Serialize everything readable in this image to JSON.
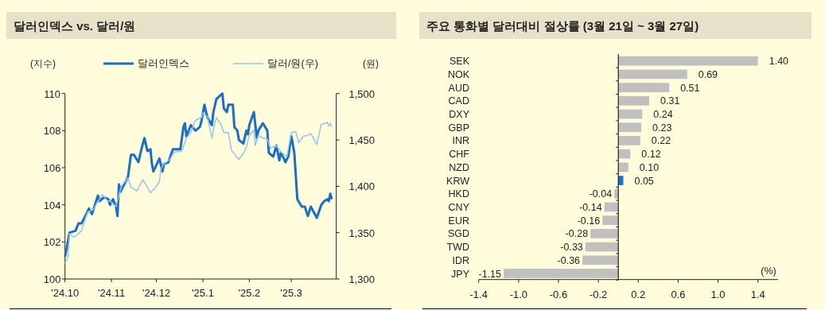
{
  "chart_data": [
    {
      "type": "line",
      "title": "달러인덱스 vs. 달러/원",
      "ylabel": "(지수)",
      "y2label": "(원)",
      "legend": "top",
      "xlim": [
        "2024-10-01",
        "2025-03-31"
      ],
      "xticks": [
        {
          "value": "2024-10-01",
          "label": "'24.10"
        },
        {
          "value": "2024-11-01",
          "label": "'24.11"
        },
        {
          "value": "2024-12-01",
          "label": "'24.12"
        },
        {
          "value": "2025-01-01",
          "label": "'25.1"
        },
        {
          "value": "2025-02-01",
          "label": "'25.2"
        },
        {
          "value": "2025-03-01",
          "label": "'25.3"
        }
      ],
      "ylim": [
        100,
        110
      ],
      "yticks": [
        100,
        102,
        104,
        106,
        108,
        110
      ],
      "y2lim": [
        1300,
        1500
      ],
      "y2ticks": [
        {
          "value": 1300,
          "label": "1,300"
        },
        {
          "value": 1350,
          "label": "1,350"
        },
        {
          "value": 1400,
          "label": "1,400"
        },
        {
          "value": 1450,
          "label": "1,450"
        },
        {
          "value": 1500,
          "label": "1,500"
        }
      ],
      "series": [
        {
          "name": "달러인덱스",
          "color": "#1a6fc4",
          "x": [
            "2024-10-01",
            "2024-10-04",
            "2024-10-08",
            "2024-10-10",
            "2024-10-12",
            "2024-10-14",
            "2024-10-17",
            "2024-10-19",
            "2024-10-23",
            "2024-10-24",
            "2024-10-27",
            "2024-10-30",
            "2024-10-31",
            "2024-11-02",
            "2024-11-04",
            "2024-11-05",
            "2024-11-06",
            "2024-11-07",
            "2024-11-12",
            "2024-11-14",
            "2024-11-16",
            "2024-11-19",
            "2024-11-21",
            "2024-11-23",
            "2024-11-25",
            "2024-11-27",
            "2024-11-28",
            "2024-11-29",
            "2024-12-03",
            "2024-12-05",
            "2024-12-06",
            "2024-12-09",
            "2024-12-12",
            "2024-12-14",
            "2024-12-17",
            "2024-12-19",
            "2024-12-20",
            "2024-12-21",
            "2024-12-24",
            "2024-12-27",
            "2024-12-30",
            "2024-12-31",
            "2025-01-02",
            "2025-01-04",
            "2025-01-07",
            "2025-01-08",
            "2025-01-10",
            "2025-01-14",
            "2025-01-15",
            "2025-01-17",
            "2025-01-18",
            "2025-01-21",
            "2025-01-22",
            "2025-01-24",
            "2025-01-25",
            "2025-01-28",
            "2025-01-30",
            "2025-01-31",
            "2025-02-01",
            "2025-02-04",
            "2025-02-06",
            "2025-02-07",
            "2025-02-10",
            "2025-02-13",
            "2025-02-14",
            "2025-02-17",
            "2025-02-19",
            "2025-02-21",
            "2025-02-22",
            "2025-02-24",
            "2025-02-25",
            "2025-02-27",
            "2025-03-01",
            "2025-03-03",
            "2025-03-05",
            "2025-03-08",
            "2025-03-10",
            "2025-03-12",
            "2025-03-14",
            "2025-03-18",
            "2025-03-21",
            "2025-03-23",
            "2025-03-25",
            "2025-03-26",
            "2025-03-27",
            "2025-03-28"
          ],
          "values": [
            101.2,
            102.5,
            102.6,
            103.0,
            103.0,
            103.3,
            103.8,
            103.5,
            104.5,
            104.2,
            104.4,
            104.3,
            104.0,
            104.3,
            103.9,
            103.4,
            105.1,
            104.7,
            105.5,
            106.7,
            106.7,
            106.3,
            107.0,
            107.6,
            106.9,
            107.0,
            106.2,
            105.8,
            106.5,
            105.8,
            106.2,
            106.3,
            107.0,
            107.0,
            107.0,
            108.2,
            108.4,
            107.7,
            108.3,
            108.0,
            108.2,
            108.5,
            109.4,
            108.7,
            108.3,
            109.0,
            109.7,
            110.0,
            109.2,
            109.0,
            109.4,
            109.4,
            108.2,
            108.0,
            107.5,
            107.3,
            108.0,
            107.8,
            108.3,
            109.0,
            107.6,
            108.0,
            108.4,
            108.0,
            106.8,
            106.6,
            107.2,
            106.4,
            106.8,
            106.5,
            106.3,
            106.6,
            107.7,
            106.8,
            104.3,
            103.9,
            103.9,
            103.4,
            103.9,
            103.3,
            104.0,
            104.2,
            104.3,
            104.2,
            104.6,
            104.3
          ]
        },
        {
          "name": "달러/원(우)",
          "color": "#92c4f0",
          "axis": "y2",
          "x": [
            "2024-10-01",
            "2024-10-03",
            "2024-10-04",
            "2024-10-07",
            "2024-10-10",
            "2024-10-12",
            "2024-10-16",
            "2024-10-20",
            "2024-10-22",
            "2024-10-26",
            "2024-10-29",
            "2024-10-31",
            "2024-11-04",
            "2024-11-06",
            "2024-11-08",
            "2024-11-12",
            "2024-11-14",
            "2024-11-18",
            "2024-11-20",
            "2024-11-22",
            "2024-11-25",
            "2024-11-27",
            "2024-11-30",
            "2024-12-03",
            "2024-12-04",
            "2024-12-06",
            "2024-12-10",
            "2024-12-13",
            "2024-12-18",
            "2024-12-21",
            "2024-12-24",
            "2024-12-27",
            "2024-12-31",
            "2025-01-01",
            "2025-01-04",
            "2025-01-07",
            "2025-01-08",
            "2025-01-10",
            "2025-01-13",
            "2025-01-15",
            "2025-01-18",
            "2025-01-20",
            "2025-01-25",
            "2025-01-28",
            "2025-01-30",
            "2025-02-01",
            "2025-02-04",
            "2025-02-05",
            "2025-02-07",
            "2025-02-10",
            "2025-02-13",
            "2025-02-15",
            "2025-02-19",
            "2025-02-22",
            "2025-02-26",
            "2025-03-01",
            "2025-03-04",
            "2025-03-06",
            "2025-03-09",
            "2025-03-12",
            "2025-03-14",
            "2025-03-18",
            "2025-03-21",
            "2025-03-24",
            "2025-03-25",
            "2025-03-26",
            "2025-03-27",
            "2025-03-28"
          ],
          "values": [
            1317,
            1324,
            1349,
            1345,
            1349,
            1352,
            1372,
            1375,
            1381,
            1391,
            1385,
            1384,
            1378,
            1391,
            1401,
            1409,
            1399,
            1395,
            1401,
            1407,
            1399,
            1393,
            1398,
            1405,
            1419,
            1424,
            1429,
            1437,
            1438,
            1452,
            1458,
            1471,
            1474,
            1479,
            1475,
            1452,
            1461,
            1474,
            1467,
            1458,
            1458,
            1439,
            1429,
            1435,
            1442,
            1455,
            1461,
            1444,
            1455,
            1452,
            1451,
            1441,
            1444,
            1437,
            1432,
            1458,
            1459,
            1447,
            1454,
            1455,
            1457,
            1445,
            1467,
            1468,
            1469,
            1465,
            1468,
            1464
          ]
        }
      ]
    },
    {
      "type": "bar",
      "orientation": "horizontal",
      "title": "주요 통화별 달러대비 절상률 (3월 21일 ~ 3월 27일)",
      "categories": [
        "SEK",
        "NOK",
        "AUD",
        "CAD",
        "DXY",
        "GBP",
        "INR",
        "CHF",
        "NZD",
        "KRW",
        "HKD",
        "CNY",
        "EUR",
        "SGD",
        "TWD",
        "IDR",
        "JPY"
      ],
      "values": [
        1.4,
        0.69,
        0.51,
        0.31,
        0.24,
        0.23,
        0.22,
        0.12,
        0.1,
        0.05,
        -0.04,
        -0.14,
        -0.16,
        -0.28,
        -0.33,
        -0.36,
        -1.15
      ],
      "value_labels": [
        "1.40",
        "0.69",
        "0.51",
        "0.31",
        "0.24",
        "0.23",
        "0.22",
        "0.12",
        "0.10",
        "0.05",
        "-0.04",
        "-0.14",
        "-0.16",
        "-0.28",
        "-0.33",
        "-0.36",
        "-1.15"
      ],
      "colors": [
        "#c0c0c0",
        "#c0c0c0",
        "#c0c0c0",
        "#c0c0c0",
        "#c0c0c0",
        "#c0c0c0",
        "#c0c0c0",
        "#c0c0c0",
        "#c0c0c0",
        "#1f6fc5",
        "#c0c0c0",
        "#c0c0c0",
        "#c0c0c0",
        "#c0c0c0",
        "#c0c0c0",
        "#c0c0c0",
        "#c0c0c0"
      ],
      "xlim": [
        -1.4,
        1.6
      ],
      "xticks": [
        -1.4,
        {
          "value": -1,
          "label": "-1.0"
        },
        -0.6,
        -0.2,
        0.2,
        0.6,
        {
          "value": 1,
          "label": "1.0"
        },
        1.4
      ],
      "annotations": [
        "(%)"
      ]
    }
  ]
}
